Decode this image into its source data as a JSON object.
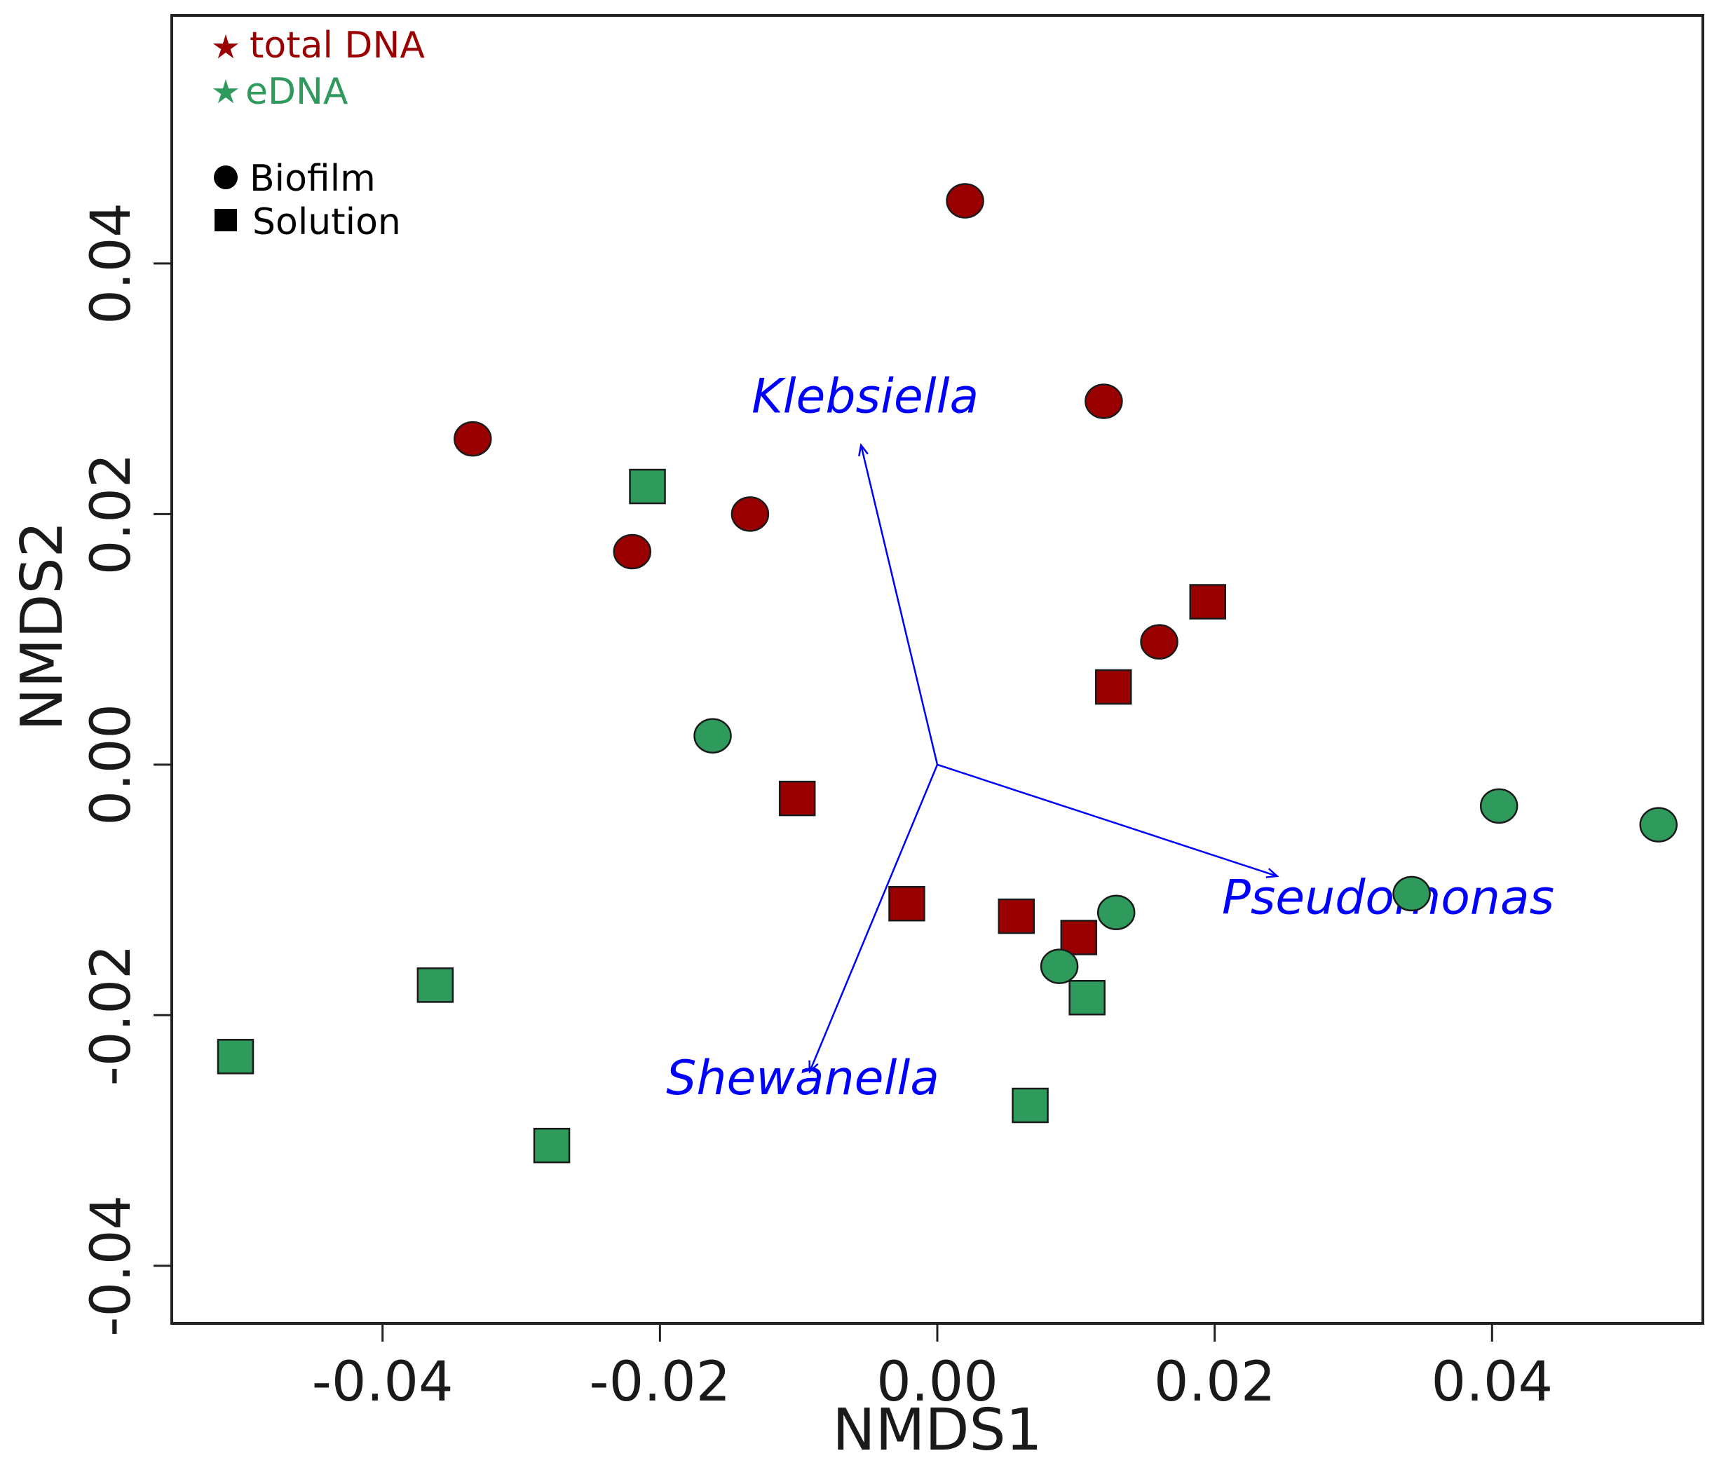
{
  "chart_data": {
    "type": "scatter",
    "title": "",
    "xlabel": "NMDS1",
    "ylabel": "NMDS2",
    "xlim": [
      -0.0552,
      0.0552
    ],
    "ylim": [
      -0.0446,
      0.0598
    ],
    "x_ticks": [
      -0.04,
      -0.02,
      0.0,
      0.02,
      0.04
    ],
    "x_tick_labels": [
      "-0.04",
      "-0.02",
      "0.00",
      "0.02",
      "0.04"
    ],
    "y_ticks": [
      -0.04,
      -0.02,
      0.0,
      0.02,
      0.04
    ],
    "y_tick_labels": [
      "-0.04",
      "-0.02",
      "0.00",
      "0.02",
      "0.04"
    ],
    "grid": false,
    "legend": {
      "position": "top-left",
      "color_entries": [
        {
          "label": "total DNA",
          "color": "#9b0000",
          "symbol": "star"
        },
        {
          "label": "eDNA",
          "color": "#2e9a5c",
          "symbol": "star"
        }
      ],
      "shape_entries": [
        {
          "label": "Biofilm",
          "shape": "circle"
        },
        {
          "label": "Solution",
          "shape": "square"
        }
      ]
    },
    "series": [
      {
        "name": "total DNA Biofilm",
        "group": "total DNA",
        "shape": "circle",
        "color": "#9b0000",
        "points": [
          [
            0.002,
            0.045
          ],
          [
            0.012,
            0.029
          ],
          [
            -0.0335,
            0.026
          ],
          [
            -0.0135,
            0.02
          ],
          [
            -0.022,
            0.017
          ],
          [
            0.016,
            0.0098
          ]
        ]
      },
      {
        "name": "total DNA Solution",
        "group": "total DNA",
        "shape": "square",
        "color": "#9b0000",
        "points": [
          [
            0.0195,
            0.013
          ],
          [
            0.0127,
            0.0062
          ],
          [
            -0.0101,
            -0.0027
          ],
          [
            -0.0022,
            -0.0111
          ],
          [
            0.0057,
            -0.0121
          ],
          [
            0.0102,
            -0.0138
          ]
        ]
      },
      {
        "name": "eDNA Biofilm",
        "group": "eDNA",
        "shape": "circle",
        "color": "#2e9a5c",
        "points": [
          [
            -0.0162,
            0.0023
          ],
          [
            0.0405,
            -0.0033
          ],
          [
            0.052,
            -0.0048
          ],
          [
            0.0342,
            -0.0103
          ],
          [
            0.0129,
            -0.0118
          ],
          [
            0.0088,
            -0.0161
          ]
        ]
      },
      {
        "name": "eDNA Solution",
        "group": "eDNA",
        "shape": "square",
        "color": "#2e9a5c",
        "points": [
          [
            -0.0209,
            0.0222
          ],
          [
            -0.0362,
            -0.0176
          ],
          [
            -0.0506,
            -0.0233
          ],
          [
            -0.0278,
            -0.0304
          ],
          [
            0.0108,
            -0.0186
          ],
          [
            0.0067,
            -0.0272
          ]
        ]
      }
    ],
    "vectors": [
      {
        "label": "Klebsiella",
        "end": [
          -0.0055,
          0.0255
        ],
        "label_at": [
          -0.0052,
          0.0281
        ],
        "color": "#0000ff"
      },
      {
        "label": "Pseudomonas",
        "end": [
          0.0245,
          -0.0089
        ],
        "label_at": [
          0.0325,
          -0.0119
        ],
        "color": "#0000ff"
      },
      {
        "label": "Shewanella",
        "end": [
          -0.0092,
          -0.0245
        ],
        "label_at": [
          -0.0097,
          -0.0263
        ],
        "color": "#0000ff"
      }
    ]
  }
}
